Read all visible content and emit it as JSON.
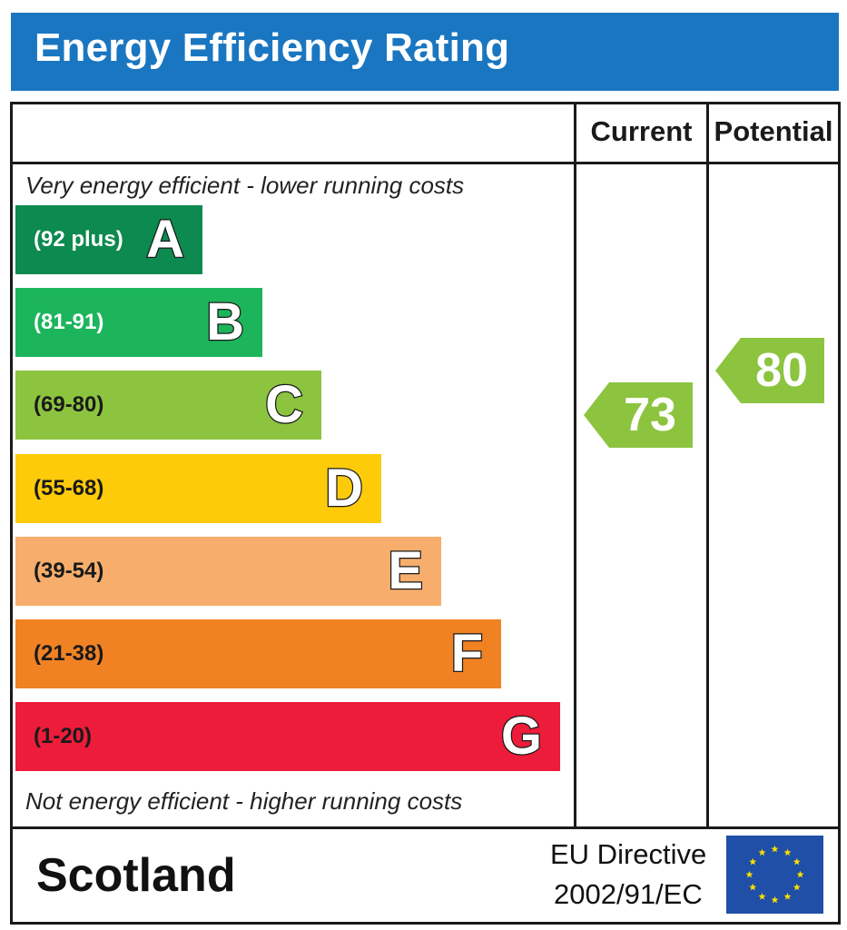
{
  "title": "Energy Efficiency Rating",
  "columns": {
    "current": "Current",
    "potential": "Potential"
  },
  "notes": {
    "top": "Very energy efficient - lower running costs",
    "bottom": "Not energy efficient - higher running costs"
  },
  "footer": {
    "country": "Scotland",
    "directive_line1": "EU Directive",
    "directive_line2": "2002/91/EC"
  },
  "chart_data": {
    "type": "bar",
    "bands": [
      {
        "letter": "A",
        "range": "(92 plus)",
        "color": "#0c8a4f",
        "label_color": "#ffffff"
      },
      {
        "letter": "B",
        "range": "(81-91)",
        "color": "#1cb55c",
        "label_color": "#ffffff"
      },
      {
        "letter": "C",
        "range": "(69-80)",
        "color": "#8cc43f",
        "label_color": "#1a1a1a"
      },
      {
        "letter": "D",
        "range": "(55-68)",
        "color": "#fecb0a",
        "label_color": "#1a1a1a"
      },
      {
        "letter": "E",
        "range": "(39-54)",
        "color": "#f7ae6c",
        "label_color": "#1a1a1a"
      },
      {
        "letter": "F",
        "range": "(21-38)",
        "color": "#f08224",
        "label_color": "#1a1a1a"
      },
      {
        "letter": "G",
        "range": "(1-20)",
        "color": "#ed1c3a",
        "label_color": "#1a1a1a"
      }
    ],
    "current": {
      "value": 73,
      "band": "C",
      "color": "#8cc43f"
    },
    "potential": {
      "value": 80,
      "band": "C",
      "color": "#8cc43f"
    }
  }
}
